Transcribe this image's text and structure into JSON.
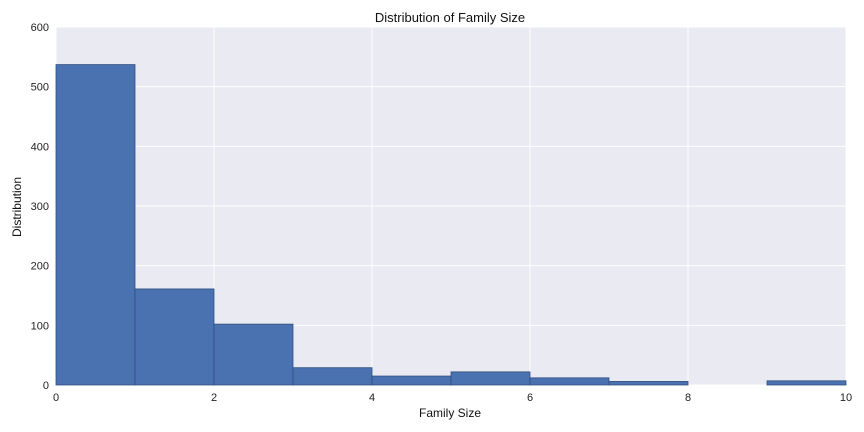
{
  "chart_data": {
    "type": "bar",
    "title": "Distribution of Family Size",
    "xlabel": "Family Size",
    "ylabel": "Distribution",
    "xlim": [
      0,
      10
    ],
    "ylim": [
      0,
      600
    ],
    "xticks": [
      0,
      2,
      4,
      6,
      8,
      10
    ],
    "yticks": [
      0,
      100,
      200,
      300,
      400,
      500,
      600
    ],
    "grid": true,
    "bins": [
      {
        "x0": 0,
        "x1": 1,
        "value": 537
      },
      {
        "x0": 1,
        "x1": 2,
        "value": 161
      },
      {
        "x0": 2,
        "x1": 3,
        "value": 102
      },
      {
        "x0": 3,
        "x1": 4,
        "value": 29
      },
      {
        "x0": 4,
        "x1": 5,
        "value": 15
      },
      {
        "x0": 5,
        "x1": 6,
        "value": 22
      },
      {
        "x0": 6,
        "x1": 7,
        "value": 12
      },
      {
        "x0": 7,
        "x1": 8,
        "value": 6
      },
      {
        "x0": 8,
        "x1": 9,
        "value": 0
      },
      {
        "x0": 9,
        "x1": 10,
        "value": 7
      }
    ],
    "colors": {
      "bar": "#4a72b0",
      "bar_edge": "#2f4f7f",
      "plot_background": "#eaeaf2",
      "grid": "#ffffff"
    }
  }
}
